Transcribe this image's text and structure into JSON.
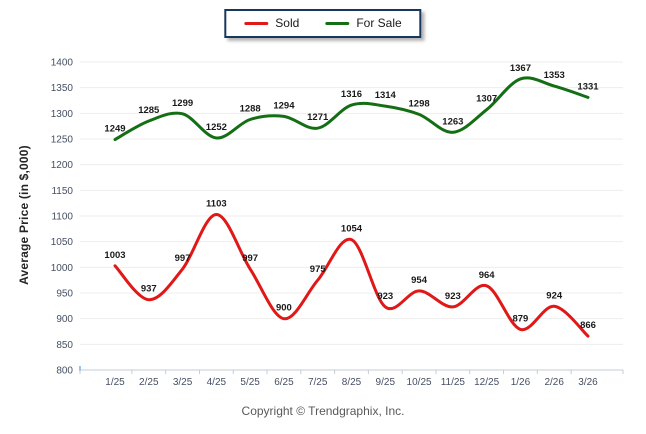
{
  "legend": {
    "items": [
      {
        "label": "Sold",
        "color": "#e01818"
      },
      {
        "label": "For Sale",
        "color": "#146e14"
      }
    ]
  },
  "y_axis_title": "Average Price (in $,000)",
  "copyright": "Copyright © Trendgraphix, Inc.",
  "chart_data": {
    "type": "line",
    "title": "",
    "xlabel": "",
    "ylabel": "Average Price (in $,000)",
    "categories": [
      "1/25",
      "2/25",
      "3/25",
      "4/25",
      "5/25",
      "6/25",
      "7/25",
      "8/25",
      "9/25",
      "10/25",
      "11/25",
      "12/25",
      "1/26",
      "2/26",
      "3/26"
    ],
    "series": [
      {
        "name": "Sold",
        "color": "#e01818",
        "values": [
          1003,
          937,
          997,
          1103,
          997,
          900,
          975,
          1054,
          923,
          954,
          923,
          964,
          879,
          924,
          866
        ]
      },
      {
        "name": "For Sale",
        "color": "#146e14",
        "values": [
          1249,
          1285,
          1299,
          1252,
          1288,
          1294,
          1271,
          1316,
          1314,
          1298,
          1263,
          1307,
          1367,
          1353,
          1331
        ]
      }
    ],
    "ylim": [
      800,
      1400
    ],
    "ytick_step": 50,
    "grid": true,
    "smooth": true,
    "legend_position": "top-center",
    "colors": {
      "grid": "#ededed",
      "axis_line": "#c5ccd6",
      "axis_left_tick": "#9dc3e6",
      "tick_text": "#454f63",
      "value_label": "#1a1a1a"
    }
  }
}
